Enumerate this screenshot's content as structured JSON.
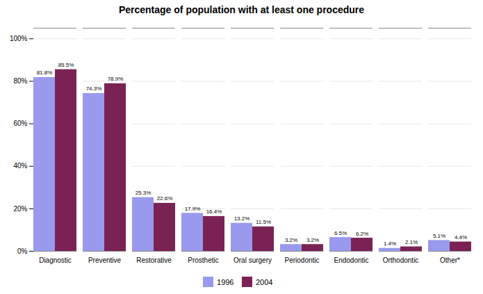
{
  "chart_data": {
    "type": "bar",
    "title": "Percentage of population with at least one procedure",
    "categories": [
      "Diagnostic",
      "Preventive",
      "Restorative",
      "Prosthetic",
      "Oral surgery",
      "Periodontic",
      "Endodontic",
      "Orthodontic",
      "Other*"
    ],
    "series": [
      {
        "name": "1996",
        "color": "#9999EE",
        "values": [
          81.8,
          74.3,
          25.3,
          17.9,
          13.2,
          3.2,
          6.5,
          1.4,
          5.1
        ],
        "value_labels": [
          "81.8%",
          "74.3%",
          "25.3%",
          "17.9%",
          "13.2%",
          "3.2%",
          "6.5%",
          "1.4%",
          "5.1%"
        ]
      },
      {
        "name": "2004",
        "color": "#7B2255",
        "values": [
          85.5,
          78.9,
          22.6,
          16.4,
          11.5,
          3.2,
          6.2,
          2.1,
          4.4
        ],
        "value_labels": [
          "85.5%",
          "78.9%",
          "22.6%",
          "16.4%",
          "11.5%",
          "3.2%",
          "6.2%",
          "2.1%",
          "4.4%"
        ]
      }
    ],
    "ylim": [
      0,
      105
    ],
    "yticks": [
      {
        "value": 0,
        "label": "0%"
      },
      {
        "value": 20,
        "label": "20%"
      },
      {
        "value": 40,
        "label": "40%"
      },
      {
        "value": 60,
        "label": "60%"
      },
      {
        "value": 80,
        "label": "80%"
      },
      {
        "value": 100,
        "label": "100%"
      }
    ],
    "grid": true,
    "data_labels": true,
    "legend": "bottom"
  }
}
